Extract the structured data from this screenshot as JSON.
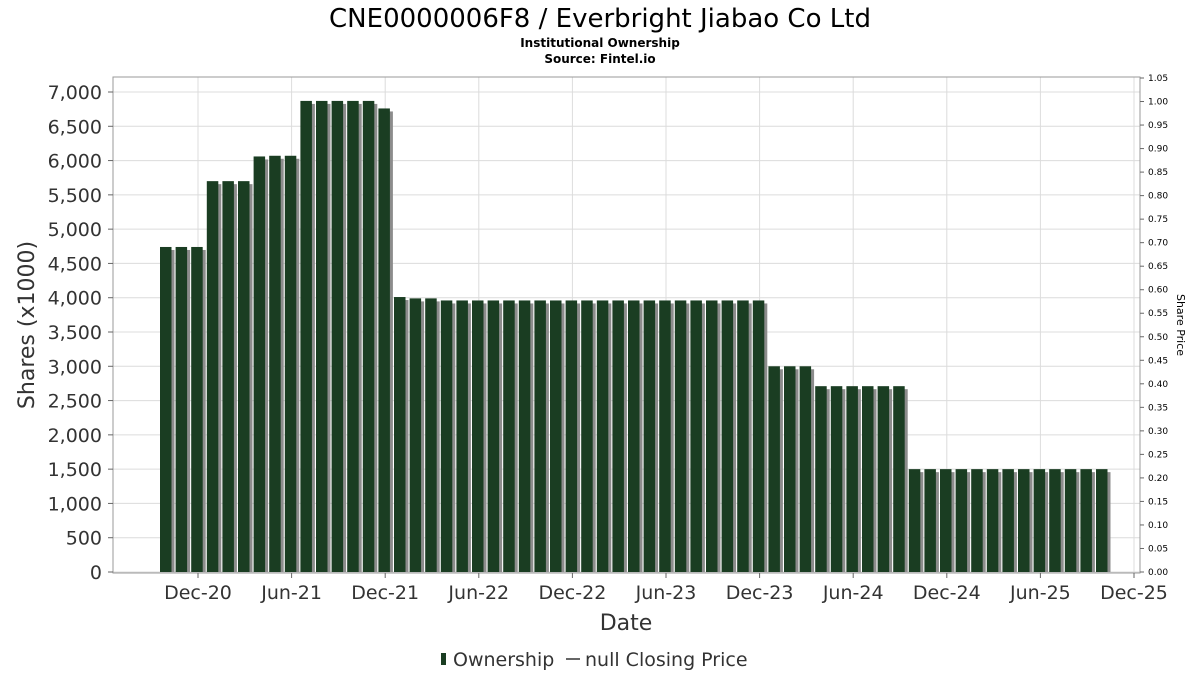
{
  "chart_data": {
    "type": "bar",
    "title": "CNE0000006F8 / Everbright Jiabao Co Ltd",
    "subtitle_lines": [
      "Institutional Ownership",
      "Source: Fintel.io"
    ],
    "xlabel": "Date",
    "ylabel": "Shares (x1000)",
    "y2label": "Share Price",
    "ylim": [
      0,
      7000
    ],
    "y2lim": [
      0,
      1.05
    ],
    "y_ticks": [
      "0",
      "500",
      "1,000",
      "1,500",
      "2,000",
      "2,500",
      "3,000",
      "3,500",
      "4,000",
      "4,500",
      "5,000",
      "5,500",
      "6,000",
      "6,500",
      "7,000"
    ],
    "y2_ticks": [
      "0.00",
      "0.05",
      "0.10",
      "0.15",
      "0.20",
      "0.25",
      "0.30",
      "0.35",
      "0.40",
      "0.45",
      "0.50",
      "0.55",
      "0.60",
      "0.65",
      "0.70",
      "0.75",
      "0.80",
      "0.85",
      "0.90",
      "0.95",
      "1.00",
      "1.05"
    ],
    "x_ticks": [
      "Dec-20",
      "Jun-21",
      "Dec-21",
      "Jun-22",
      "Dec-22",
      "Jun-23",
      "Dec-23",
      "Jun-24",
      "Dec-24",
      "Jun-25",
      "Dec-25"
    ],
    "grid": true,
    "legend_position": "bottom",
    "series": [
      {
        "name": "Ownership",
        "color": "#1a3d22",
        "values": [
          4740,
          4740,
          4740,
          5700,
          5700,
          5700,
          6060,
          6070,
          6070,
          6870,
          6870,
          6870,
          6870,
          6870,
          6760,
          4010,
          3990,
          3990,
          3960,
          3960,
          3960,
          3960,
          3960,
          3960,
          3960,
          3960,
          3960,
          3960,
          3960,
          3960,
          3960,
          3960,
          3960,
          3960,
          3960,
          3960,
          3960,
          3960,
          3960,
          3000,
          3000,
          3000,
          2710,
          2710,
          2710,
          2710,
          2710,
          2710,
          1500,
          1500,
          1500,
          1500,
          1500,
          1500,
          1500,
          1500,
          1500,
          1500,
          1500,
          1500,
          1500
        ]
      }
    ],
    "legend": [
      {
        "label": "Ownership",
        "marker": "bar",
        "color": "#1a3d22"
      },
      {
        "label": "null Closing Price",
        "marker": "line",
        "color": "#333333"
      }
    ]
  }
}
